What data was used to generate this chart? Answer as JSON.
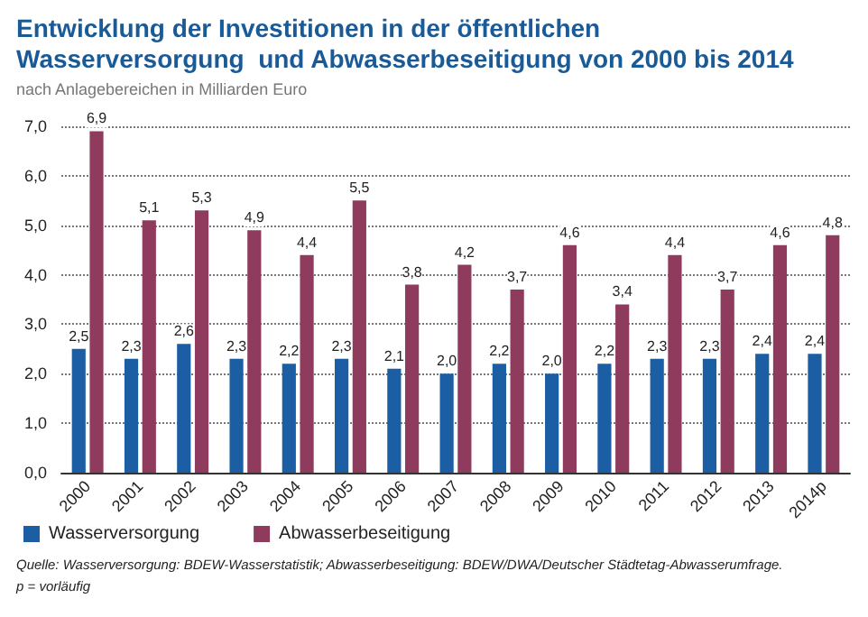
{
  "chart_data": {
    "type": "bar",
    "title": "Entwicklung der Investitionen in der öffentlichen\nWasserversorgung  und Abwasserbeseitigung von 2000 bis 2014",
    "subtitle": "nach Anlagebereichen in Milliarden Euro",
    "categories": [
      "2000",
      "2001",
      "2002",
      "2003",
      "2004",
      "2005",
      "2006",
      "2007",
      "2008",
      "2009",
      "2010",
      "2011",
      "2012",
      "2013",
      "2014p"
    ],
    "series": [
      {
        "name": "Wasserversorgung",
        "color": "#1b5ea3",
        "values": [
          2.5,
          2.3,
          2.6,
          2.3,
          2.2,
          2.3,
          2.1,
          2.0,
          2.2,
          2.0,
          2.2,
          2.3,
          2.3,
          2.4,
          2.4
        ],
        "value_labels": [
          "2,5",
          "2,3",
          "2,6",
          "2,3",
          "2,2",
          "2,3",
          "2,1",
          "2,0",
          "2,2",
          "2,0",
          "2,2",
          "2,3",
          "2,3",
          "2,4",
          "2,4"
        ]
      },
      {
        "name": "Abwasserbeseitigung",
        "color": "#8e3b5e",
        "values": [
          6.9,
          5.1,
          5.3,
          4.9,
          4.4,
          5.5,
          3.8,
          4.2,
          3.7,
          4.6,
          3.4,
          4.4,
          3.7,
          4.6,
          4.8
        ],
        "value_labels": [
          "6,9",
          "5,1",
          "5,3",
          "4,9",
          "4,4",
          "5,5",
          "3,8",
          "4,2",
          "3,7",
          "4,6",
          "3,4",
          "4,4",
          "3,7",
          "4,6",
          "4,8"
        ]
      }
    ],
    "ylim": [
      0,
      7
    ],
    "yticks": [
      {
        "value": 0,
        "label": "0,0"
      },
      {
        "value": 1,
        "label": "1,0"
      },
      {
        "value": 2,
        "label": "2,0"
      },
      {
        "value": 3,
        "label": "3,0"
      },
      {
        "value": 4,
        "label": "4,0"
      },
      {
        "value": 5,
        "label": "5,0"
      },
      {
        "value": 6,
        "label": "6,0"
      },
      {
        "value": 7,
        "label": "7,0"
      }
    ],
    "grid": "y",
    "legend": "bottom left",
    "annotations": [
      "Quelle: Wasserversorgung: BDEW-Wasserstatistik; Abwasserbeseitigung: BDEW/DWA/Deutscher Städtetag-Abwasserumfrage.",
      "p = vorläufig"
    ]
  }
}
